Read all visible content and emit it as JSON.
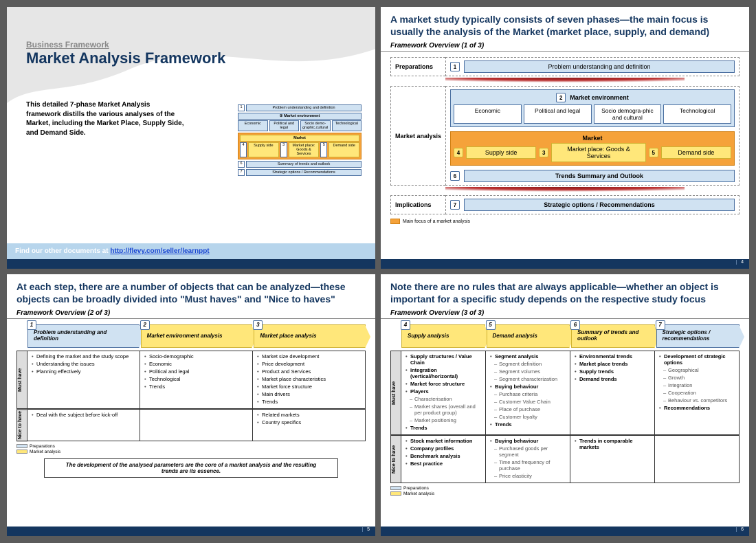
{
  "colors": {
    "navy": "#14365f",
    "lightBlue": "#d0e2f2",
    "blueBorder": "#4a6fa0",
    "yellow": "#ffe77a",
    "yellowBorder": "#d0b230",
    "orange": "#f5a23a",
    "orangeBorder": "#d07f12",
    "grey": "#5b5b5b",
    "linkBar": "#b7d5ec"
  },
  "s1": {
    "category": "Business Framework",
    "title": "Market Analysis Framework",
    "desc": "This detailed 7-phase Market Analysis framework distills the various analyses of the Market, including the Market Place, Supply Side, and Demand Side.",
    "linkPrefix": "Find our other documents at ",
    "linkText": "http://flevy.com/seller/learnppt",
    "mini": {
      "r1": "Problem understanding and definition",
      "envTitle": "Market environment",
      "env": [
        "Economic",
        "Political and legal",
        "Socio demo-graphic,cultural",
        "Technological"
      ],
      "mktTitle": "Market",
      "mkt": [
        "Supply side",
        "Market place: Goods & Services",
        "Demand side"
      ],
      "r6": "Summary of trends and outlook",
      "r7": "Strategic options / Recommendations"
    }
  },
  "s2": {
    "title": "A market study typically consists of seven phases—the main focus is usually the analysis of the Market (market place, supply, and demand)",
    "sub": "Framework Overview (1 of 3)",
    "prep": "Preparations",
    "phase1": "Problem understanding and definition",
    "analysis": "Market analysis",
    "envTitle": "Market environment",
    "env": [
      "Economic",
      "Political and legal",
      "Socio demogra-phic and cultural",
      "Technological"
    ],
    "mktTitle": "Market",
    "mktCenter": "Market place: Goods & Services",
    "supply": "Supply side",
    "demand": "Demand side",
    "phase6": "Trends Summary and Outlook",
    "impl": "Implications",
    "phase7": "Strategic options / Recommendations",
    "legend": "Main focus of a market analysis",
    "page": "4"
  },
  "s3": {
    "title": "At each step, there are a number of objects that can be analyzed—these objects can be broadly divided into \"Must haves\" and \"Nice to haves\"",
    "sub": "Framework Overview (2 of 3)",
    "chev": [
      "Problem understanding and definition",
      "Market environment analysis",
      "Market place analysis"
    ],
    "must": "Must have",
    "nice": "Nice to have",
    "mustCols": [
      [
        "Defining the market and the study scope",
        "Understanding the issues",
        "Planning effectively"
      ],
      [
        "Socio-demographic",
        "Economic",
        "Political and legal",
        "Technological",
        "Trends"
      ],
      [
        "Market size development",
        "Price development",
        "Product and Services",
        "Market place characteristics",
        "Market force structure",
        "Main drivers",
        "Trends"
      ]
    ],
    "niceCols": [
      [
        "Deal with the subject before kick-off"
      ],
      [],
      [
        "Related markets",
        "Country specifics"
      ]
    ],
    "legend": [
      "Preparations",
      "Market analysis"
    ],
    "note": "The development of the analysed parameters are the core of a market analysis and the resulting trends are its essence.",
    "page": "5"
  },
  "s4": {
    "title": "Note there are no rules that are always applicable—whether an object is important for a specific study depends on the respective study focus",
    "sub": "Framework Overview (3 of 3)",
    "chev": [
      "Supply analysis",
      "Demand analysis",
      "Summary of trends and outlook",
      "Strategic options / recommendations"
    ],
    "chevNums": [
      "4",
      "5",
      "6",
      "7"
    ],
    "must": "Must have",
    "nice": "Nice to have",
    "mustCols": [
      [
        {
          "t": "Supply structures / Value Chain",
          "b": 1
        },
        {
          "t": "Integration (vertical/horizontal)",
          "b": 1
        },
        {
          "t": "Market force structure",
          "b": 1
        },
        {
          "t": "Players",
          "b": 1
        },
        {
          "t": "Characterisation",
          "s": 1
        },
        {
          "t": "Market shares (overall and per product group)",
          "s": 1
        },
        {
          "t": "Market positioning",
          "s": 1
        },
        {
          "t": "Trends",
          "b": 1
        }
      ],
      [
        {
          "t": "Segment analysis",
          "b": 1
        },
        {
          "t": "Segment definition",
          "s": 1
        },
        {
          "t": "Segment volumes",
          "s": 1
        },
        {
          "t": "Segment characterization",
          "s": 1
        },
        {
          "t": "Buying behaviour",
          "b": 1
        },
        {
          "t": "Purchase criteria",
          "s": 1
        },
        {
          "t": "Customer Value Chain",
          "s": 1
        },
        {
          "t": "Place of purchase",
          "s": 1
        },
        {
          "t": "Customer loyalty",
          "s": 1
        },
        {
          "t": "Trends",
          "b": 1
        }
      ],
      [
        {
          "t": "Environmental trends",
          "b": 1
        },
        {
          "t": "Market place trends",
          "b": 1
        },
        {
          "t": "Supply trends",
          "b": 1
        },
        {
          "t": "Demand trends",
          "b": 1
        }
      ],
      [
        {
          "t": "Development of strategic options",
          "b": 1
        },
        {
          "t": "Geographical",
          "s": 1
        },
        {
          "t": "Growth",
          "s": 1
        },
        {
          "t": "Integration",
          "s": 1
        },
        {
          "t": "Cooperation",
          "s": 1
        },
        {
          "t": "Behaviour vs. competitors",
          "s": 1
        },
        {
          "t": "Recommendations",
          "b": 1
        }
      ]
    ],
    "niceCols": [
      [
        {
          "t": "Stock market information",
          "b": 1
        },
        {
          "t": "Company profiles",
          "b": 1
        },
        {
          "t": "Benchmark analysis",
          "b": 1
        },
        {
          "t": "Best practice",
          "b": 1
        }
      ],
      [
        {
          "t": "Buying behaviour",
          "b": 1
        },
        {
          "t": "Purchased goods per segment",
          "s": 1
        },
        {
          "t": "Time and frequency of purchase",
          "s": 1
        },
        {
          "t": "Price elasticity",
          "s": 1
        }
      ],
      [
        {
          "t": "Trends in comparable markets",
          "b": 1
        }
      ],
      []
    ],
    "legend": [
      "Preparations",
      "Market analysis"
    ],
    "page": "6"
  }
}
